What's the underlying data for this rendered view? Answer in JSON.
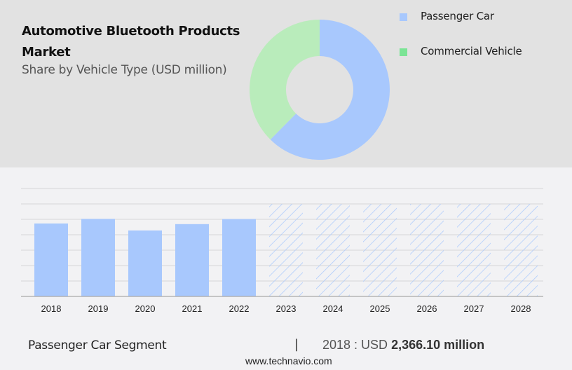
{
  "header": {
    "title_line1": "Automotive Bluetooth Products",
    "title_line2": "Market",
    "subtitle": "Share by Vehicle Type (USD million)"
  },
  "legend": [
    {
      "label": "Passenger Car",
      "color": "#a8c8fd"
    },
    {
      "label": "Commercial Vehicle",
      "color": "#7be495"
    }
  ],
  "footer": {
    "segment_label": "Passenger Car Segment",
    "separator": "|",
    "value_prefix": "2018 : USD ",
    "value_bold": "2,366.10 million",
    "website": "www.technavio.com"
  },
  "colors": {
    "passenger_car_donut": "#a8c8fd",
    "commercial_vehicle_donut": "#b9ecbb",
    "bar": "#a8c8fd",
    "hatch": "#a8c8fd",
    "grid": "#d6d6d8",
    "axis": "#a9a9a9"
  },
  "chart_data": [
    {
      "type": "pie",
      "title": "Automotive Bluetooth Products Market",
      "subtitle": "Share by Vehicle Type (USD million)",
      "donut": true,
      "categories": [
        "Passenger Car",
        "Commercial Vehicle"
      ],
      "values": [
        62.4,
        37.6
      ],
      "unit": "% share (estimated)",
      "legend_position": "right"
    },
    {
      "type": "bar",
      "title": "Passenger Car Segment",
      "categories": [
        "2018",
        "2019",
        "2020",
        "2021",
        "2022",
        "2023",
        "2024",
        "2025",
        "2026",
        "2027",
        "2028"
      ],
      "series": [
        {
          "name": "Passenger Car",
          "values": [
            2366.1,
            2515,
            2140,
            2345,
            2510,
            null,
            null,
            null,
            null,
            null,
            null
          ],
          "forecast_placeholder": [
            false,
            false,
            false,
            false,
            false,
            true,
            true,
            true,
            true,
            true,
            true
          ]
        }
      ],
      "xlabel": "",
      "ylabel": "USD million",
      "ylim": [
        0,
        3500
      ],
      "grid": true,
      "y_tick_labels_visible": false,
      "annotation": "2018 : USD 2,366.10 million"
    }
  ]
}
